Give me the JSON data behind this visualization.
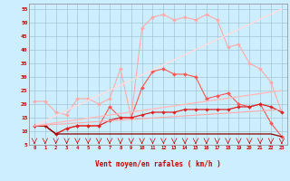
{
  "xlabel": "Vent moyen/en rafales ( km/h )",
  "xlim": [
    -0.5,
    23.5
  ],
  "ylim": [
    5,
    57
  ],
  "yticks": [
    5,
    10,
    15,
    20,
    25,
    30,
    35,
    40,
    45,
    50,
    55
  ],
  "xticks": [
    0,
    1,
    2,
    3,
    4,
    5,
    6,
    7,
    8,
    9,
    10,
    11,
    12,
    13,
    14,
    15,
    16,
    17,
    18,
    19,
    20,
    21,
    22,
    23
  ],
  "background_color": "#cceeff",
  "grid_color": "#99bbcc",
  "series": [
    {
      "x": [
        0,
        1,
        2,
        3,
        4,
        5,
        6,
        7,
        8,
        9,
        10,
        11,
        12,
        13,
        14,
        15,
        16,
        17,
        18,
        19,
        20,
        21,
        22,
        23
      ],
      "y": [
        21,
        21,
        17,
        16,
        22,
        22,
        20,
        22,
        33,
        15,
        48,
        52,
        53,
        51,
        52,
        51,
        53,
        51,
        41,
        42,
        35,
        33,
        28,
        17
      ],
      "color": "#ffaaaa",
      "marker": "D",
      "markersize": 2.0,
      "linewidth": 0.8
    },
    {
      "x": [
        0,
        1,
        2,
        3,
        4,
        5,
        6,
        7,
        8,
        9,
        10,
        11,
        12,
        13,
        14,
        15,
        16,
        17,
        18,
        19,
        20,
        21,
        22,
        23
      ],
      "y": [
        12,
        12,
        9,
        11,
        12,
        12,
        12,
        19,
        15,
        15,
        26,
        32,
        33,
        31,
        31,
        30,
        22,
        23,
        24,
        20,
        19,
        20,
        13,
        8
      ],
      "color": "#ff5555",
      "marker": "D",
      "markersize": 2.0,
      "linewidth": 0.8
    },
    {
      "x": [
        0,
        1,
        2,
        3,
        4,
        5,
        6,
        7,
        8,
        9,
        10,
        11,
        12,
        13,
        14,
        15,
        16,
        17,
        18,
        19,
        20,
        21,
        22,
        23
      ],
      "y": [
        12,
        12,
        9,
        11,
        12,
        12,
        12,
        14,
        15,
        15,
        16,
        17,
        17,
        17,
        18,
        18,
        18,
        18,
        18,
        19,
        19,
        20,
        19,
        17
      ],
      "color": "#dd2222",
      "marker": "D",
      "markersize": 1.8,
      "linewidth": 0.9
    },
    {
      "x": [
        0,
        1,
        2,
        3,
        4,
        5,
        6,
        7,
        8,
        9,
        10,
        11,
        12,
        13,
        14,
        15,
        16,
        17,
        18,
        19,
        20,
        21,
        22,
        23
      ],
      "y": [
        12,
        12,
        9,
        9,
        9,
        9,
        9,
        9,
        9,
        9,
        9,
        9,
        9,
        9,
        9,
        9,
        9,
        9,
        9,
        9,
        9,
        9,
        9,
        8
      ],
      "color": "#880000",
      "marker": null,
      "markersize": 0,
      "linewidth": 0.9
    },
    {
      "x": [
        0,
        23
      ],
      "y": [
        12,
        55
      ],
      "color": "#ffdddd",
      "marker": null,
      "markersize": 0,
      "linewidth": 1.0
    },
    {
      "x": [
        0,
        23
      ],
      "y": [
        12,
        25
      ],
      "color": "#ffbbbb",
      "marker": null,
      "markersize": 0,
      "linewidth": 1.0
    },
    {
      "x": [
        0,
        23
      ],
      "y": [
        12,
        18
      ],
      "color": "#ffaaaa",
      "marker": null,
      "markersize": 0,
      "linewidth": 0.8
    }
  ],
  "wind_arrows_x": [
    0,
    1,
    2,
    3,
    4,
    5,
    6,
    7,
    8,
    9,
    10,
    11,
    12,
    13,
    14,
    15,
    16,
    17,
    18,
    19,
    20,
    21,
    22,
    23
  ],
  "wind_arrow_color": "#cc0000"
}
